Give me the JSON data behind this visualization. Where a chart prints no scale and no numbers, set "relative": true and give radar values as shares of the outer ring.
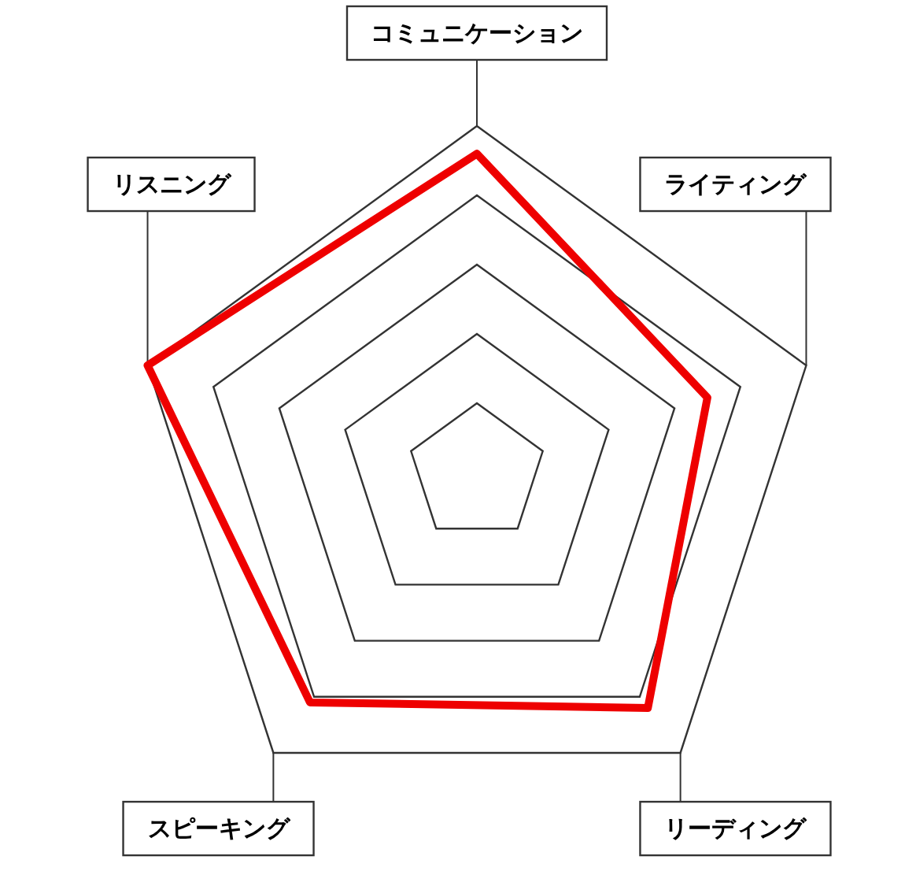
{
  "chart_data": {
    "type": "radar",
    "relative": true,
    "categories": [
      "コミュニケーション",
      "ライティング",
      "リーディング",
      "スピーキング",
      "リスニング"
    ],
    "series": [
      {
        "color": "#ee0000",
        "values": [
          0.92,
          0.7,
          0.84,
          0.82,
          1.0
        ]
      }
    ]
  }
}
